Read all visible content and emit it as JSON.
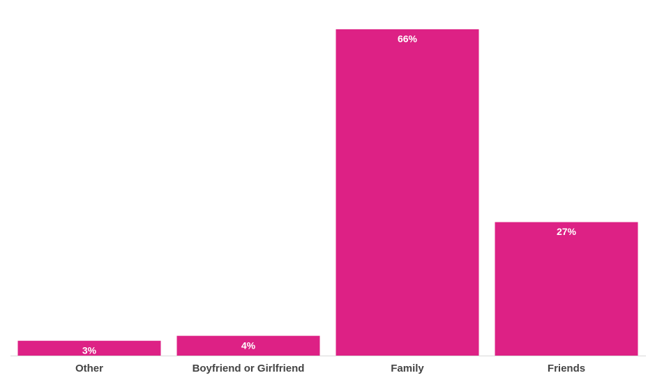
{
  "chart_data": {
    "type": "bar",
    "categories": [
      "Other",
      "Boyfriend or Girlfriend",
      "Family",
      "Friends"
    ],
    "values": [
      3,
      4,
      66,
      27
    ],
    "value_labels": [
      "3%",
      "4%",
      "66%",
      "27%"
    ],
    "color": "#dd2185"
  }
}
